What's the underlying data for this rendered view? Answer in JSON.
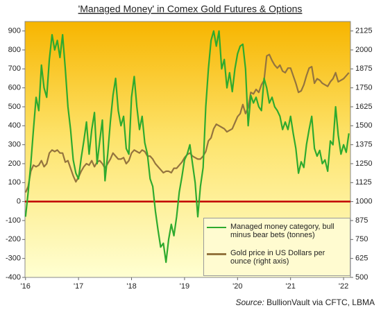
{
  "chart_data": {
    "type": "line",
    "title": "'Managed Money' in Comex Gold Futures & Options",
    "source_label": "Source:",
    "source": "BullionVault via CFTC, LBMA",
    "x": [
      2016.0,
      2016.05,
      2016.1,
      2016.15,
      2016.2,
      2016.25,
      2016.3,
      2016.35,
      2016.4,
      2016.45,
      2016.5,
      2016.55,
      2016.6,
      2016.65,
      2016.7,
      2016.75,
      2016.8,
      2016.85,
      2016.9,
      2016.95,
      2017.0,
      2017.05,
      2017.1,
      2017.15,
      2017.2,
      2017.25,
      2017.3,
      2017.35,
      2017.4,
      2017.45,
      2017.5,
      2017.55,
      2017.6,
      2017.65,
      2017.7,
      2017.75,
      2017.8,
      2017.85,
      2017.9,
      2017.95,
      2018.0,
      2018.05,
      2018.1,
      2018.15,
      2018.2,
      2018.25,
      2018.3,
      2018.35,
      2018.4,
      2018.45,
      2018.5,
      2018.55,
      2018.6,
      2018.65,
      2018.7,
      2018.75,
      2018.8,
      2018.85,
      2018.9,
      2018.95,
      2019.0,
      2019.05,
      2019.1,
      2019.15,
      2019.2,
      2019.25,
      2019.3,
      2019.35,
      2019.4,
      2019.45,
      2019.5,
      2019.55,
      2019.6,
      2019.65,
      2019.7,
      2019.75,
      2019.8,
      2019.85,
      2019.9,
      2019.95,
      2020.0,
      2020.05,
      2020.1,
      2020.15,
      2020.2,
      2020.25,
      2020.3,
      2020.35,
      2020.4,
      2020.45,
      2020.5,
      2020.55,
      2020.6,
      2020.65,
      2020.7,
      2020.75,
      2020.8,
      2020.85,
      2020.9,
      2020.95,
      2021.0,
      2021.05,
      2021.1,
      2021.15,
      2021.2,
      2021.25,
      2021.3,
      2021.35,
      2021.4,
      2021.45,
      2021.5,
      2021.55,
      2021.6,
      2021.65,
      2021.7,
      2021.75,
      2021.8,
      2021.85,
      2021.9,
      2021.95,
      2022.0,
      2022.05,
      2022.1
    ],
    "series": [
      {
        "name": "Managed money category, bull minus bear bets (tonnes)",
        "color": "#2eaa2e",
        "values": [
          -80,
          50,
          200,
          380,
          550,
          480,
          720,
          600,
          550,
          750,
          880,
          800,
          850,
          760,
          880,
          700,
          500,
          380,
          220,
          150,
          120,
          230,
          320,
          420,
          250,
          380,
          470,
          200,
          320,
          430,
          110,
          250,
          420,
          560,
          650,
          480,
          400,
          450,
          280,
          250,
          550,
          660,
          500,
          380,
          450,
          310,
          250,
          120,
          80,
          -50,
          -150,
          -240,
          -220,
          -320,
          -200,
          -120,
          -180,
          -80,
          50,
          130,
          220,
          250,
          300,
          200,
          100,
          -80,
          80,
          180,
          500,
          700,
          850,
          900,
          820,
          900,
          700,
          750,
          600,
          680,
          580,
          700,
          780,
          820,
          830,
          700,
          400,
          560,
          520,
          550,
          500,
          480,
          650,
          600,
          520,
          550,
          500,
          480,
          450,
          380,
          420,
          380,
          450,
          360,
          280,
          150,
          210,
          180,
          300,
          380,
          450,
          280,
          240,
          270,
          200,
          220,
          160,
          320,
          300,
          500,
          350,
          250,
          300,
          260,
          360
        ]
      },
      {
        "name": "Gold price in US Dollars per ounce (right axis)",
        "color": "#94743e",
        "axis": "y2",
        "values": [
          1060,
          1100,
          1200,
          1240,
          1230,
          1240,
          1270,
          1230,
          1250,
          1320,
          1340,
          1330,
          1340,
          1320,
          1320,
          1260,
          1270,
          1220,
          1170,
          1130,
          1160,
          1200,
          1230,
          1250,
          1240,
          1270,
          1230,
          1260,
          1270,
          1250,
          1220,
          1250,
          1280,
          1320,
          1300,
          1280,
          1280,
          1290,
          1250,
          1270,
          1320,
          1340,
          1330,
          1320,
          1340,
          1330,
          1300,
          1300,
          1280,
          1250,
          1230,
          1210,
          1190,
          1200,
          1200,
          1190,
          1220,
          1220,
          1240,
          1260,
          1290,
          1310,
          1320,
          1300,
          1290,
          1280,
          1280,
          1300,
          1330,
          1400,
          1420,
          1480,
          1510,
          1500,
          1490,
          1480,
          1460,
          1470,
          1480,
          1520,
          1560,
          1580,
          1640,
          1580,
          1620,
          1720,
          1710,
          1740,
          1720,
          1770,
          1800,
          1960,
          1970,
          1930,
          1900,
          1880,
          1900,
          1860,
          1850,
          1880,
          1880,
          1830,
          1780,
          1720,
          1730,
          1770,
          1830,
          1880,
          1890,
          1780,
          1810,
          1800,
          1780,
          1770,
          1760,
          1790,
          1810,
          1850,
          1790,
          1800,
          1810,
          1830,
          1850
        ]
      }
    ],
    "xlim": [
      2015.99,
      2022.13
    ],
    "xticks": [
      {
        "value": 2016,
        "label": "'16"
      },
      {
        "value": 2017,
        "label": "'17"
      },
      {
        "value": 2018,
        "label": "'18"
      },
      {
        "value": 2019,
        "label": "'19"
      },
      {
        "value": 2020,
        "label": "'20"
      },
      {
        "value": 2021,
        "label": "'21"
      },
      {
        "value": 2022,
        "label": "'22"
      }
    ],
    "ylim": [
      -400,
      950
    ],
    "yticks": [
      -400,
      -300,
      -200,
      -100,
      0,
      100,
      200,
      300,
      400,
      500,
      600,
      700,
      800,
      900
    ],
    "y2lim": [
      500,
      2187.5
    ],
    "y2ticks": [
      500,
      625,
      750,
      875,
      1000,
      1125,
      1250,
      1375,
      1500,
      1625,
      1750,
      1875,
      2000,
      2125
    ],
    "zero_line_color": "#c00000",
    "legend": "bottom-right"
  }
}
